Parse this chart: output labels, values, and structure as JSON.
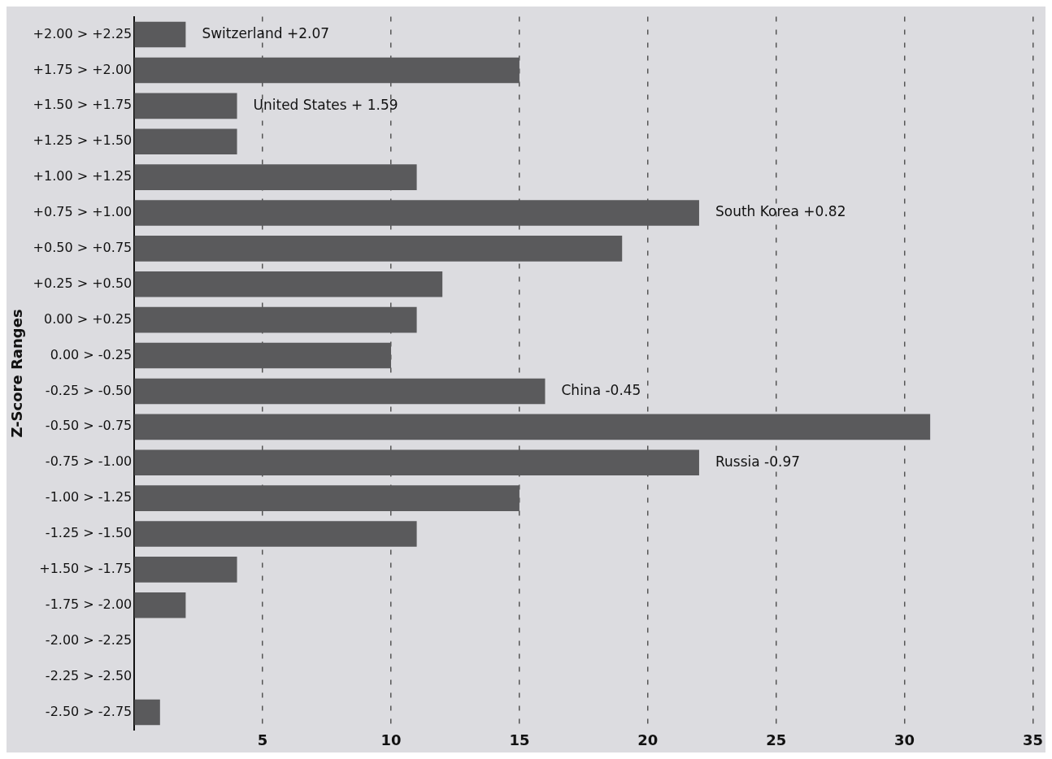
{
  "chart_data": {
    "type": "bar",
    "orientation": "horizontal",
    "ylabel": "Z-Score Ranges",
    "categories": [
      "+2.00 > +2.25",
      "+1.75 > +2.00",
      "+1.50 > +1.75",
      "+1.25 > +1.50",
      "+1.00 > +1.25",
      "+0.75 > +1.00",
      "+0.50 > +0.75",
      "+0.25 > +0.50",
      "0.00 > +0.25",
      "0.00 > -0.25",
      "-0.25 > -0.50",
      "-0.50 > -0.75",
      "-0.75 > -1.00",
      "-1.00 > -1.25",
      "-1.25 > -1.50",
      "+1.50 > -1.75",
      "-1.75 > -2.00",
      "-2.00 > -2.25",
      "-2.25 > -2.50",
      "-2.50 > -2.75"
    ],
    "values": [
      2,
      15,
      4,
      4,
      11,
      22,
      19,
      12,
      11,
      10,
      16,
      31,
      22,
      15,
      11,
      4,
      2,
      0,
      0,
      1
    ],
    "color": "#5a5a5c",
    "xlim": [
      0,
      35
    ],
    "xticks": [
      5,
      10,
      15,
      20,
      25,
      30,
      35
    ],
    "grid": "x",
    "line_style": "dashed",
    "annotations": [
      {
        "text": "Switzerland +2.07",
        "x": 2,
        "y": "+2.00 > +2.25"
      },
      {
        "text": "United States + 1.59",
        "x": 4,
        "y": "+1.50 > +1.75"
      },
      {
        "text": "South Korea +0.82",
        "x": 22,
        "y": "+0.75 > +1.00"
      },
      {
        "text": "China -0.45",
        "x": 16,
        "y": "-0.25 > -0.50"
      },
      {
        "text": "Russia -0.97",
        "x": 22,
        "y": "-0.75 > -1.00"
      }
    ]
  }
}
